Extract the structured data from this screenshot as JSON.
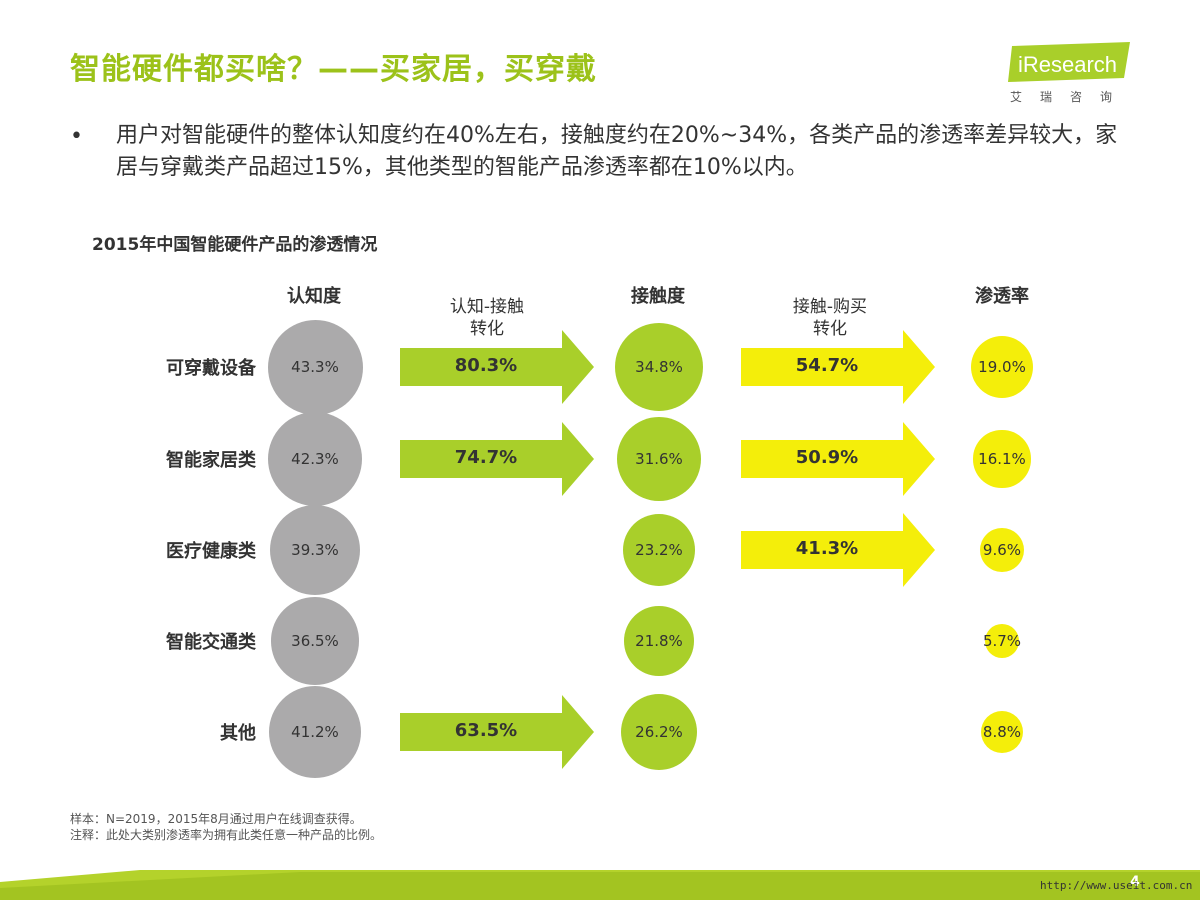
{
  "header": {
    "title": "智能硬件都买啥？——买家居，买穿戴",
    "logo_text": "iResearch",
    "logo_cn": "艾瑞咨询"
  },
  "bullet": {
    "dot": "•",
    "text": "用户对智能硬件的整体认知度约在40%左右，接触度约在20%~34%，各类产品的渗透率差异较大，家居与穿戴类产品超过15%，其他类型的智能产品渗透率都在10%以内。"
  },
  "colors": {
    "gray": "#abaaab",
    "green": "#a9cf2a",
    "yellow": "#f4ee0a",
    "title_green": "#9cc21a"
  },
  "chart_data": {
    "type": "table",
    "title": "2015年中国智能硬件产品的渗透情况",
    "columns": {
      "awareness": "认知度",
      "conv1": "认知-接触\n转化",
      "contact": "接触度",
      "conv2": "接触-购买\n转化",
      "penetration": "渗透率"
    },
    "rows": [
      {
        "label": "可穿戴设备",
        "awareness": "43.3%",
        "conv1": "80.3%",
        "contact": "34.8%",
        "conv2": "54.7%",
        "penetration": "19.0%"
      },
      {
        "label": "智能家居类",
        "awareness": "42.3%",
        "conv1": "74.7%",
        "contact": "31.6%",
        "conv2": "50.9%",
        "penetration": "16.1%"
      },
      {
        "label": "医疗健康类",
        "awareness": "39.3%",
        "conv1": "",
        "contact": "23.2%",
        "conv2": "41.3%",
        "penetration": "9.6%"
      },
      {
        "label": "智能交通类",
        "awareness": "36.5%",
        "conv1": "",
        "contact": "21.8%",
        "conv2": "",
        "penetration": "5.7%"
      },
      {
        "label": "其他",
        "awareness": "41.2%",
        "conv1": "63.5%",
        "contact": "26.2%",
        "conv2": "",
        "penetration": "8.8%"
      }
    ]
  },
  "footer": {
    "sample": "样本：N=2019，2015年8月通过用户在线调查获得。",
    "note": "注释：此处大类别渗透率为拥有此类任意一种产品的比例。",
    "page": "4",
    "url": "http://www.useit.com.cn"
  }
}
